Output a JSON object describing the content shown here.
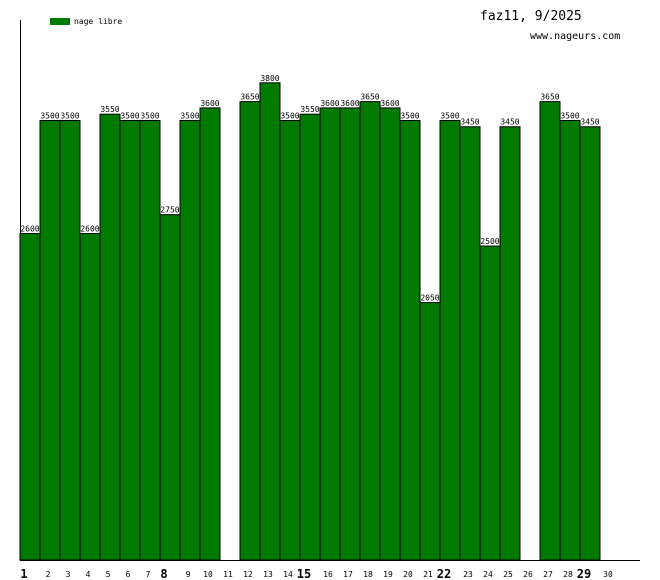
{
  "header": {
    "title": "faz11, 9/2025",
    "site": "www.nageurs.com"
  },
  "legend": {
    "label": "nage libre",
    "color": "#007a00"
  },
  "chart_data": {
    "type": "bar",
    "title": "faz11, 9/2025",
    "xlabel": "",
    "ylabel": "",
    "ylim": [
      0,
      4300
    ],
    "grid": false,
    "legend_position": "top-left",
    "categories": [
      "1",
      "2",
      "3",
      "4",
      "5",
      "6",
      "7",
      "8",
      "9",
      "10",
      "11",
      "12",
      "13",
      "14",
      "15",
      "16",
      "17",
      "18",
      "19",
      "20",
      "21",
      "22",
      "23",
      "24",
      "25",
      "26",
      "27",
      "28",
      "29",
      "30"
    ],
    "bold_categories": [
      "1",
      "8",
      "15",
      "22",
      "29"
    ],
    "series": [
      {
        "name": "nage libre",
        "color": "#007a00",
        "values": [
          2600,
          3500,
          3500,
          2600,
          3550,
          3500,
          3500,
          2750,
          3500,
          3600,
          null,
          3650,
          3800,
          3500,
          3550,
          3600,
          3600,
          3650,
          3600,
          3500,
          2050,
          3500,
          3450,
          2500,
          3450,
          null,
          3650,
          3500,
          3450,
          null
        ]
      }
    ]
  }
}
